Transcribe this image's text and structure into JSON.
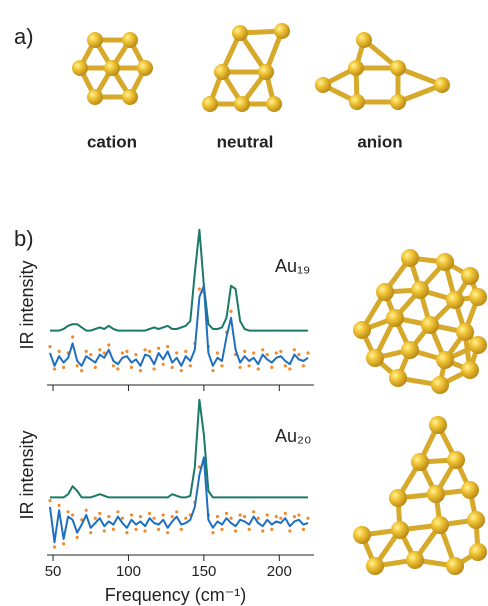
{
  "figure": {
    "panel_a": "a)",
    "panel_b": "b)",
    "structures": [
      "cation",
      "neutral",
      "anion"
    ]
  },
  "chart_data": [
    {
      "type": "line",
      "annotation": "Au₁₉",
      "ylabel": "IR intensity",
      "xlim": [
        46,
        223
      ],
      "xticks": [
        50,
        100,
        150,
        200
      ],
      "xtick_labels": false,
      "ylim": [
        0,
        1
      ],
      "x": [
        48,
        51,
        54,
        57,
        60,
        63,
        66,
        69,
        72,
        75,
        78,
        81,
        84,
        87,
        90,
        93,
        96,
        99,
        102,
        105,
        108,
        111,
        114,
        117,
        120,
        123,
        126,
        129,
        132,
        135,
        138,
        141,
        144,
        147,
        150,
        153,
        156,
        159,
        162,
        165,
        168,
        171,
        174,
        177,
        180,
        183,
        186,
        189,
        192,
        195,
        198,
        201,
        204,
        207,
        210,
        213,
        216,
        219
      ],
      "series": [
        {
          "color": "#1a7a66",
          "style": "line",
          "values": [
            0.34,
            0.34,
            0.34,
            0.35,
            0.37,
            0.38,
            0.38,
            0.36,
            0.34,
            0.34,
            0.35,
            0.36,
            0.35,
            0.37,
            0.35,
            0.34,
            0.34,
            0.34,
            0.34,
            0.34,
            0.34,
            0.34,
            0.35,
            0.36,
            0.35,
            0.36,
            0.37,
            0.35,
            0.35,
            0.36,
            0.37,
            0.4,
            0.7,
            0.97,
            0.62,
            0.38,
            0.35,
            0.35,
            0.36,
            0.42,
            0.62,
            0.6,
            0.4,
            0.35,
            0.34,
            0.34,
            0.34,
            0.34,
            0.34,
            0.34,
            0.34,
            0.34,
            0.34,
            0.34,
            0.34,
            0.34,
            0.34,
            0.34
          ]
        },
        {
          "color": "#f08a2c",
          "style": "dots",
          "values": [
            0.24,
            0.1,
            0.21,
            0.11,
            0.2,
            0.3,
            0.12,
            0.09,
            0.21,
            0.19,
            0.11,
            0.22,
            0.2,
            0.25,
            0.12,
            0.1,
            0.2,
            0.21,
            0.11,
            0.19,
            0.09,
            0.22,
            0.21,
            0.1,
            0.23,
            0.13,
            0.24,
            0.11,
            0.2,
            0.09,
            0.21,
            0.12,
            0.26,
            0.6,
            0.58,
            0.24,
            0.09,
            0.2,
            0.12,
            0.33,
            0.46,
            0.19,
            0.11,
            0.21,
            0.12,
            0.2,
            0.1,
            0.22,
            0.19,
            0.11,
            0.2,
            0.21,
            0.12,
            0.1,
            0.22,
            0.19,
            0.12,
            0.2
          ]
        },
        {
          "color": "#1f6fc0",
          "style": "line",
          "values": [
            0.2,
            0.12,
            0.18,
            0.14,
            0.17,
            0.26,
            0.15,
            0.12,
            0.18,
            0.16,
            0.14,
            0.19,
            0.17,
            0.22,
            0.15,
            0.13,
            0.17,
            0.18,
            0.14,
            0.16,
            0.12,
            0.19,
            0.18,
            0.13,
            0.2,
            0.16,
            0.21,
            0.14,
            0.17,
            0.12,
            0.18,
            0.15,
            0.22,
            0.55,
            0.62,
            0.2,
            0.12,
            0.17,
            0.15,
            0.3,
            0.42,
            0.22,
            0.14,
            0.18,
            0.15,
            0.17,
            0.13,
            0.19,
            0.16,
            0.14,
            0.17,
            0.18,
            0.15,
            0.13,
            0.19,
            0.16,
            0.15,
            0.17
          ]
        }
      ]
    },
    {
      "type": "line",
      "annotation": "Au₂₀",
      "ylabel": "IR intensity",
      "xlabel": "Frequency (cm⁻¹)",
      "xlim": [
        46,
        223
      ],
      "xticks": [
        50,
        100,
        150,
        200
      ],
      "xtick_labels": true,
      "ylim": [
        0,
        1
      ],
      "x": [
        48,
        51,
        54,
        57,
        60,
        63,
        66,
        69,
        72,
        75,
        78,
        81,
        84,
        87,
        90,
        93,
        96,
        99,
        102,
        105,
        108,
        111,
        114,
        117,
        120,
        123,
        126,
        129,
        132,
        135,
        138,
        141,
        144,
        147,
        150,
        153,
        156,
        159,
        162,
        165,
        168,
        171,
        174,
        177,
        180,
        183,
        186,
        189,
        192,
        195,
        198,
        201,
        204,
        207,
        210,
        213,
        216,
        219
      ],
      "series": [
        {
          "color": "#1a7a66",
          "style": "line",
          "values": [
            0.36,
            0.36,
            0.36,
            0.36,
            0.38,
            0.43,
            0.4,
            0.36,
            0.36,
            0.36,
            0.37,
            0.38,
            0.37,
            0.36,
            0.36,
            0.36,
            0.36,
            0.36,
            0.36,
            0.36,
            0.36,
            0.36,
            0.36,
            0.36,
            0.36,
            0.36,
            0.36,
            0.38,
            0.37,
            0.36,
            0.36,
            0.37,
            0.55,
            0.97,
            0.75,
            0.4,
            0.36,
            0.36,
            0.36,
            0.36,
            0.36,
            0.36,
            0.36,
            0.36,
            0.36,
            0.36,
            0.36,
            0.36,
            0.36,
            0.36,
            0.36,
            0.36,
            0.36,
            0.36,
            0.36,
            0.36,
            0.36,
            0.36
          ]
        },
        {
          "color": "#f08a2c",
          "style": "dots",
          "values": [
            0.34,
            0.05,
            0.31,
            0.07,
            0.27,
            0.25,
            0.11,
            0.22,
            0.28,
            0.14,
            0.23,
            0.26,
            0.15,
            0.24,
            0.16,
            0.27,
            0.23,
            0.14,
            0.25,
            0.16,
            0.24,
            0.15,
            0.26,
            0.23,
            0.16,
            0.25,
            0.14,
            0.24,
            0.27,
            0.16,
            0.23,
            0.25,
            0.33,
            0.55,
            0.58,
            0.25,
            0.14,
            0.24,
            0.16,
            0.26,
            0.23,
            0.15,
            0.25,
            0.24,
            0.16,
            0.27,
            0.23,
            0.15,
            0.25,
            0.16,
            0.24,
            0.23,
            0.26,
            0.15,
            0.24,
            0.25,
            0.16,
            0.23
          ]
        },
        {
          "color": "#1f6fc0",
          "style": "line",
          "values": [
            0.3,
            0.08,
            0.28,
            0.1,
            0.24,
            0.22,
            0.14,
            0.19,
            0.25,
            0.17,
            0.2,
            0.23,
            0.18,
            0.21,
            0.19,
            0.24,
            0.2,
            0.17,
            0.22,
            0.19,
            0.21,
            0.18,
            0.23,
            0.2,
            0.19,
            0.22,
            0.17,
            0.21,
            0.24,
            0.19,
            0.2,
            0.22,
            0.3,
            0.5,
            0.61,
            0.22,
            0.17,
            0.21,
            0.19,
            0.23,
            0.2,
            0.18,
            0.22,
            0.21,
            0.19,
            0.24,
            0.2,
            0.18,
            0.22,
            0.19,
            0.21,
            0.2,
            0.23,
            0.18,
            0.21,
            0.22,
            0.19,
            0.2
          ]
        }
      ]
    }
  ]
}
